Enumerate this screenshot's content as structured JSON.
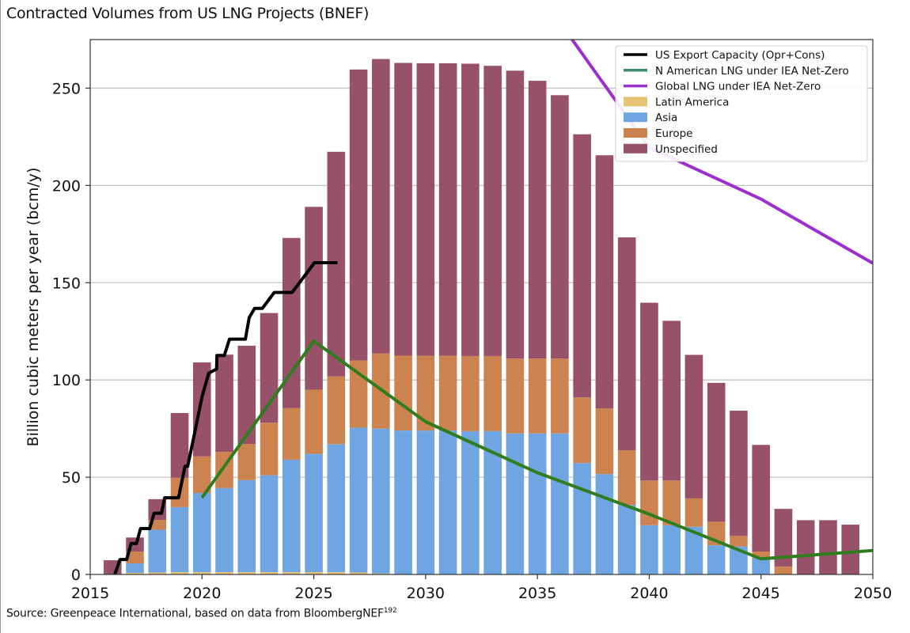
{
  "title": "Contracted Volumes from US LNG Projects (BNEF)",
  "source": {
    "text": "Source: Greenpeace International, based on data from BloombergNEF",
    "superscript": "192"
  },
  "chart_data": {
    "type": "bar",
    "stacked": true,
    "title": "Contracted Volumes from US LNG Projects (BNEF)",
    "xlabel": "",
    "ylabel": "Billion cubic meters per year (bcm/y)",
    "xlim": [
      2015,
      2050
    ],
    "ylim": [
      0,
      275
    ],
    "xticks": [
      2015,
      2020,
      2025,
      2030,
      2035,
      2040,
      2045,
      2050
    ],
    "yticks": [
      0,
      50,
      100,
      150,
      200,
      250
    ],
    "grid": "horizontal",
    "legend_position": "top-right",
    "categories": [
      2016,
      2017,
      2018,
      2019,
      2020,
      2021,
      2022,
      2023,
      2024,
      2025,
      2026,
      2027,
      2028,
      2029,
      2030,
      2031,
      2032,
      2033,
      2034,
      2035,
      2036,
      2037,
      2038,
      2039,
      2040,
      2041,
      2042,
      2043,
      2044,
      2045,
      2046,
      2047,
      2048,
      2049
    ],
    "series": [
      {
        "name": "Latin America",
        "color": "#e6c275",
        "values": [
          0,
          0.8,
          1,
          1.2,
          1.2,
          1.2,
          1.2,
          1.2,
          1.2,
          1.2,
          1.2,
          1,
          0.5,
          0,
          0,
          0,
          0,
          0,
          0,
          0,
          0,
          0,
          0,
          0,
          0,
          0,
          0,
          0,
          0,
          0,
          0,
          0,
          0,
          0
        ]
      },
      {
        "name": "Asia",
        "color": "#6fa5e0",
        "values": [
          0,
          4.9,
          22,
          33.4,
          40.7,
          43.2,
          47.3,
          49.8,
          57.8,
          60.8,
          65.8,
          74.5,
          74.5,
          74,
          74,
          74,
          73.7,
          73.7,
          72.5,
          72.5,
          72.5,
          57.3,
          51.6,
          35.7,
          25.3,
          25.3,
          24.5,
          15,
          14.4,
          8.4,
          0,
          0,
          0,
          0
        ]
      },
      {
        "name": "Europe",
        "color": "#cd8350",
        "values": [
          0,
          6.1,
          5,
          15.1,
          18.8,
          18.6,
          18.5,
          27,
          26.5,
          33,
          34.8,
          34.5,
          38.6,
          38.5,
          38.5,
          38.5,
          38.6,
          38.6,
          38.5,
          38.5,
          38.5,
          33.7,
          33.8,
          28.1,
          23,
          23,
          14.6,
          12.1,
          5.4,
          3.4,
          4.1,
          0,
          0,
          0
        ]
      },
      {
        "name": "Unspecified",
        "color": "#975168",
        "values": [
          7.3,
          7.2,
          10.7,
          33.3,
          48.3,
          50,
          50.6,
          56.4,
          87.5,
          94,
          115.5,
          149.6,
          151.4,
          150.5,
          150.3,
          150.3,
          150.3,
          149.2,
          148,
          142.8,
          135.4,
          135.3,
          130.1,
          109.5,
          91.4,
          82.1,
          73.8,
          71.4,
          64.4,
          54.8,
          29.6,
          27.9,
          27.9,
          25.6
        ]
      }
    ],
    "lines": [
      {
        "name": "US Export Capacity (Opr+Cons)",
        "color": "#000000",
        "legend_color": "#000000",
        "points": [
          [
            2016.1,
            0
          ],
          [
            2016.33,
            7.7
          ],
          [
            2016.63,
            7.7
          ],
          [
            2016.83,
            15.9
          ],
          [
            2017.07,
            15.9
          ],
          [
            2017.25,
            23.6
          ],
          [
            2017.66,
            23.6
          ],
          [
            2017.86,
            31.5
          ],
          [
            2018.19,
            31.5
          ],
          [
            2018.33,
            39.4
          ],
          [
            2018.95,
            39.4
          ],
          [
            2019.24,
            55.6
          ],
          [
            2019.36,
            55.6
          ],
          [
            2019.65,
            71.6
          ],
          [
            2020.0,
            91.3
          ],
          [
            2020.3,
            103.5
          ],
          [
            2020.65,
            105.6
          ],
          [
            2020.67,
            112.6
          ],
          [
            2021.0,
            112.6
          ],
          [
            2021.23,
            121
          ],
          [
            2021.94,
            121
          ],
          [
            2022.11,
            132
          ],
          [
            2022.35,
            136.8
          ],
          [
            2022.7,
            136.8
          ],
          [
            2023.23,
            145
          ],
          [
            2024.03,
            145
          ],
          [
            2025.03,
            160.3
          ],
          [
            2026.06,
            160.3
          ]
        ]
      },
      {
        "name": "N American LNG under IEA Net-Zero",
        "color": "#2f7d1f",
        "legend_color": "#3e8a6e",
        "points": [
          [
            2020,
            39.5
          ],
          [
            2025,
            120
          ],
          [
            2030,
            78.5
          ],
          [
            2035,
            52.3
          ],
          [
            2040,
            31
          ],
          [
            2045,
            8
          ],
          [
            2050,
            12.3
          ]
        ]
      },
      {
        "name": "Global LNG under IEA Net-Zero",
        "color": "#9b2fd0",
        "legend_color": "#9b2fd0",
        "points": [
          [
            2035,
            300
          ],
          [
            2040,
            219.5
          ],
          [
            2045,
            193
          ],
          [
            2050,
            160
          ]
        ]
      }
    ]
  }
}
